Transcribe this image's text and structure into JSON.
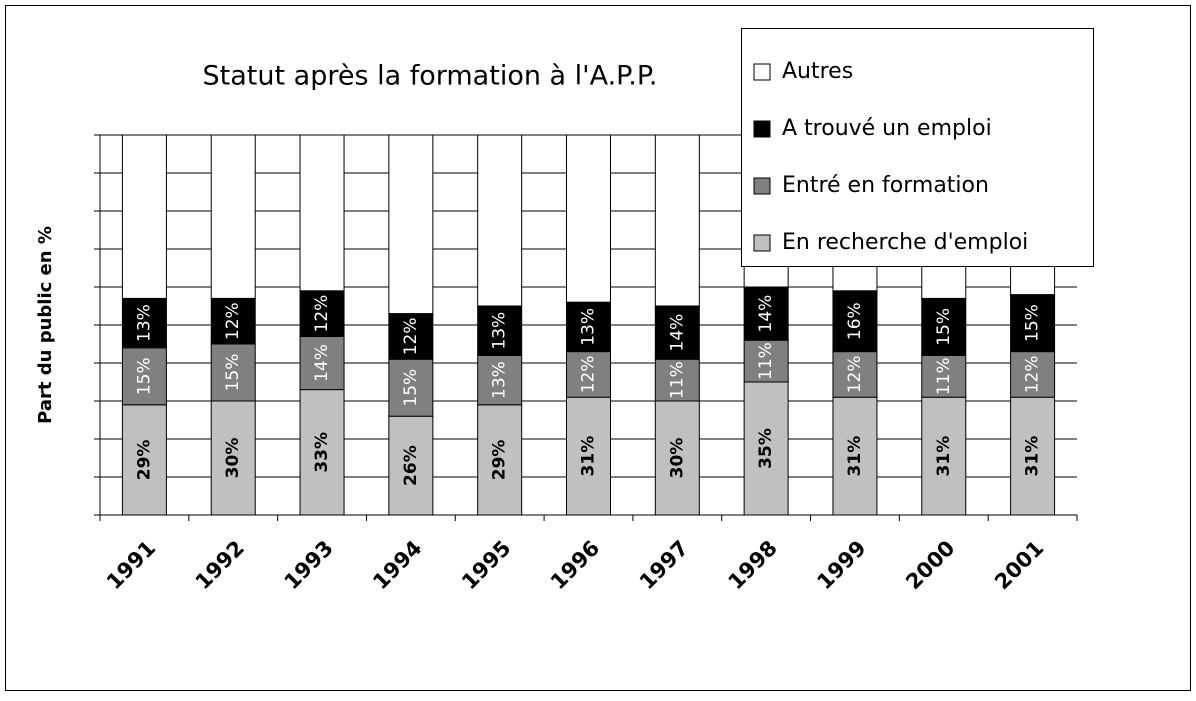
{
  "chart_data": {
    "type": "stacked_bar",
    "title": "Statut après la formation à l'A.P.P.",
    "y_label": "Part du public en %",
    "categories": [
      "1991",
      "1992",
      "1993",
      "1994",
      "1995",
      "1996",
      "1997",
      "1998",
      "1999",
      "2000",
      "2001"
    ],
    "series": [
      {
        "name": "En recherche d'emploi",
        "color": "#c0c0c0",
        "label_color": "#000000",
        "values": [
          29,
          30,
          33,
          26,
          29,
          31,
          30,
          35,
          31,
          31,
          31
        ],
        "value_labels": [
          "29%",
          "30%",
          "33%",
          "26%",
          "29%",
          "31%",
          "30%",
          "35%",
          "31%",
          "31%",
          "31%"
        ]
      },
      {
        "name": "Entré en formation",
        "color": "#808080",
        "label_color": "#ffffff",
        "values": [
          15,
          15,
          14,
          15,
          13,
          12,
          11,
          11,
          12,
          11,
          12
        ],
        "value_labels": [
          "15%",
          "15%",
          "14%",
          "15%",
          "13%",
          "12%",
          "11%",
          "11%",
          "12%",
          "11%",
          "12%"
        ]
      },
      {
        "name": "A trouvé un emploi",
        "color": "#000000",
        "label_color": "#ffffff",
        "values": [
          13,
          12,
          12,
          12,
          13,
          13,
          14,
          14,
          16,
          15,
          15
        ],
        "value_labels": [
          "13%",
          "12%",
          "12%",
          "12%",
          "13%",
          "13%",
          "14%",
          "14%",
          "16%",
          "15%",
          "15%"
        ]
      },
      {
        "name": "Autres",
        "color": "#ffffff",
        "values": [
          43,
          43,
          41,
          47,
          45,
          44,
          45,
          40,
          41,
          43,
          42
        ]
      }
    ],
    "ylim": [
      0,
      100
    ],
    "yticks": [
      0,
      10,
      20,
      30,
      40,
      50,
      60,
      70,
      80,
      90,
      100
    ],
    "grid": true,
    "legend": "top-right"
  }
}
